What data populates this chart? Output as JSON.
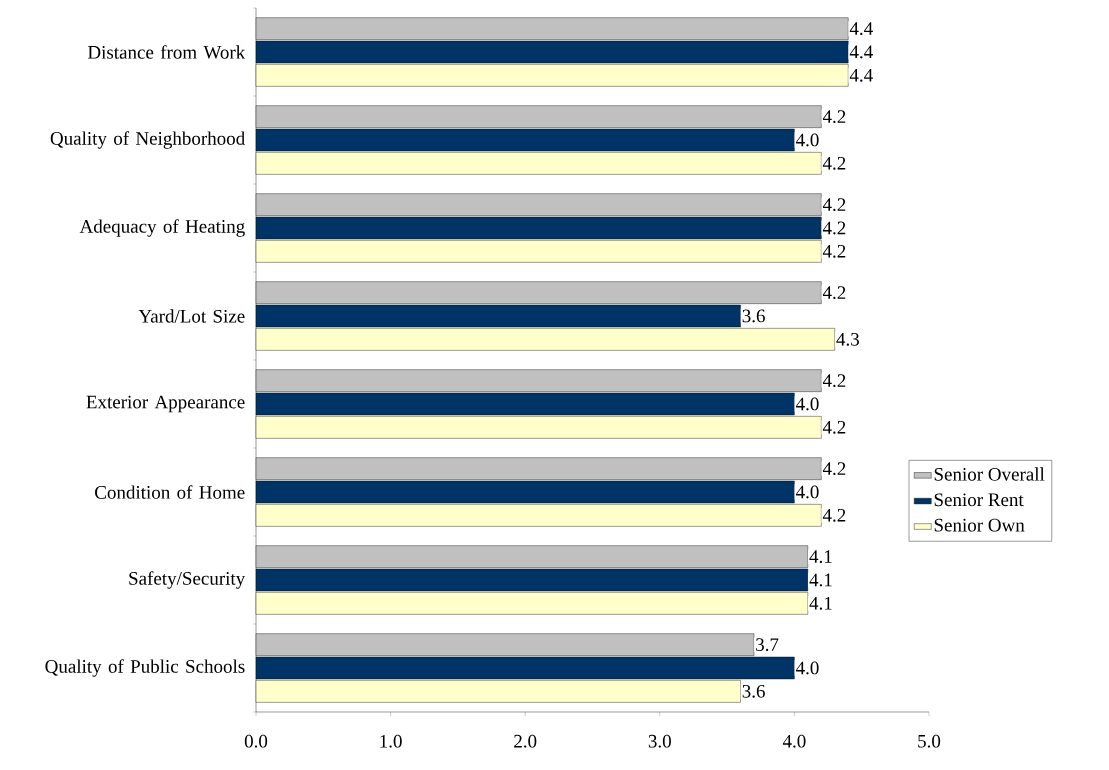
{
  "chart_data": {
    "type": "bar",
    "orientation": "horizontal",
    "categories": [
      "Distance from Work",
      "Quality of Neighborhood",
      "Adequacy of Heating",
      "Yard/Lot Size",
      "Exterior Appearance",
      "Condition of Home",
      "Safety/Security",
      "Quality of Public Schools"
    ],
    "series": [
      {
        "name": "Senior Overall",
        "color": "#c0c0c0",
        "values": [
          4.4,
          4.2,
          4.2,
          4.2,
          4.2,
          4.2,
          4.1,
          3.7
        ],
        "value_labels": [
          "4.4",
          "4.2",
          "4.2",
          "4.2",
          "4.2",
          "4.2",
          "4.1",
          "3.7"
        ]
      },
      {
        "name": "Senior Rent",
        "color": "#003366",
        "values": [
          4.4,
          4.0,
          4.2,
          3.6,
          4.0,
          4.0,
          4.1,
          4.0
        ],
        "value_labels": [
          "4.4",
          "4.0",
          "4.2",
          "3.6",
          "4.0",
          "4.0",
          "4.1",
          "4.0"
        ]
      },
      {
        "name": "Senior Own",
        "color": "#ffffcc",
        "values": [
          4.4,
          4.2,
          4.2,
          4.3,
          4.2,
          4.2,
          4.1,
          3.6
        ],
        "value_labels": [
          "4.4",
          "4.2",
          "4.2",
          "4.3",
          "4.2",
          "4.2",
          "4.1",
          "3.6"
        ]
      }
    ],
    "xlim": [
      0,
      5
    ],
    "xticks": [
      {
        "value": 0,
        "label": "0.0"
      },
      {
        "value": 1,
        "label": "1.0"
      },
      {
        "value": 2,
        "label": "2.0"
      },
      {
        "value": 3,
        "label": "3.0"
      },
      {
        "value": 4,
        "label": "4.0"
      },
      {
        "value": 5,
        "label": "5.0"
      }
    ],
    "legend": "right"
  }
}
